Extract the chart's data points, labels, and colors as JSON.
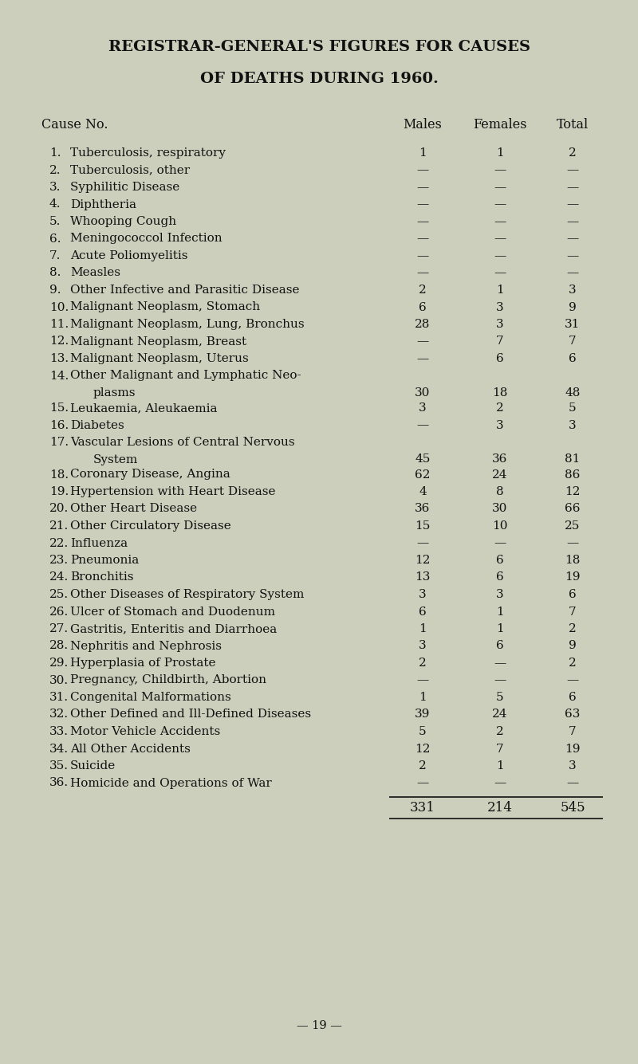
{
  "title_line1": "REGISTRAR-GENERAL'S FIGURES FOR CAUSES",
  "title_line2": "OF DEATHS DURING 1960.",
  "rows": [
    {
      "num": "1.",
      "cause": "Tuberculosis, respiratory",
      "cont": "",
      "males": "1",
      "females": "1",
      "total": "2"
    },
    {
      "num": "2.",
      "cause": "Tuberculosis, other",
      "cont": "",
      "males": "—",
      "females": "—",
      "total": "—"
    },
    {
      "num": "3.",
      "cause": "Syphilitic Disease",
      "cont": "",
      "males": "—",
      "females": "—",
      "total": "—"
    },
    {
      "num": "4.",
      "cause": "Diphtheria",
      "cont": "",
      "males": "—",
      "females": "—",
      "total": "—"
    },
    {
      "num": "5.",
      "cause": "Whooping Cough",
      "cont": "",
      "males": "—",
      "females": "—",
      "total": "—"
    },
    {
      "num": "6.",
      "cause": "Meningococcol Infection",
      "cont": "",
      "males": "—",
      "females": "—",
      "total": "—"
    },
    {
      "num": "7.",
      "cause": "Acute Poliomyelitis",
      "cont": "",
      "males": "—",
      "females": "—",
      "total": "—"
    },
    {
      "num": "8.",
      "cause": "Measles",
      "cont": "",
      "males": "—",
      "females": "—",
      "total": "—"
    },
    {
      "num": "9.",
      "cause": "Other Infective and Parasitic Disease",
      "cont": "",
      "males": "2",
      "females": "1",
      "total": "3"
    },
    {
      "num": "10.",
      "cause": "Malignant Neoplasm, Stomach",
      "cont": "",
      "males": "6",
      "females": "3",
      "total": "9"
    },
    {
      "num": "11.",
      "cause": "Malignant Neoplasm, Lung, Bronchus",
      "cont": "",
      "males": "28",
      "females": "3",
      "total": "31"
    },
    {
      "num": "12.",
      "cause": "Malignant Neoplasm, Breast",
      "cont": "",
      "males": "—",
      "females": "7",
      "total": "7"
    },
    {
      "num": "13.",
      "cause": "Malignant Neoplasm, Uterus",
      "cont": "",
      "males": "—",
      "females": "6",
      "total": "6"
    },
    {
      "num": "14.",
      "cause": "Other Malignant and Lymphatic Neo-",
      "cont": "plasms",
      "males": "30",
      "females": "18",
      "total": "48"
    },
    {
      "num": "15.",
      "cause": "Leukaemia, Aleukaemia",
      "cont": "",
      "males": "3",
      "females": "2",
      "total": "5"
    },
    {
      "num": "16.",
      "cause": "Diabetes",
      "cont": "",
      "males": "—",
      "females": "3",
      "total": "3"
    },
    {
      "num": "17.",
      "cause": "Vascular Lesions of Central Nervous",
      "cont": "System",
      "males": "45",
      "females": "36",
      "total": "81"
    },
    {
      "num": "18.",
      "cause": "Coronary Disease, Angina",
      "cont": "",
      "males": "62",
      "females": "24",
      "total": "86"
    },
    {
      "num": "19.",
      "cause": "Hypertension with Heart Disease",
      "cont": "",
      "males": "4",
      "females": "8",
      "total": "12"
    },
    {
      "num": "20.",
      "cause": "Other Heart Disease",
      "cont": "",
      "males": "36",
      "females": "30",
      "total": "66"
    },
    {
      "num": "21.",
      "cause": "Other Circulatory Disease",
      "cont": "",
      "males": "15",
      "females": "10",
      "total": "25"
    },
    {
      "num": "22.",
      "cause": "Influenza",
      "cont": "",
      "males": "—",
      "females": "—",
      "total": "—"
    },
    {
      "num": "23.",
      "cause": "Pneumonia",
      "cont": "",
      "males": "12",
      "females": "6",
      "total": "18"
    },
    {
      "num": "24.",
      "cause": "Bronchitis",
      "cont": "",
      "males": "13",
      "females": "6",
      "total": "19"
    },
    {
      "num": "25.",
      "cause": "Other Diseases of Respiratory System",
      "cont": "",
      "males": "3",
      "females": "3",
      "total": "6"
    },
    {
      "num": "26.",
      "cause": "Ulcer of Stomach and Duodenum",
      "cont": "",
      "males": "6",
      "females": "1",
      "total": "7"
    },
    {
      "num": "27.",
      "cause": "Gastritis, Enteritis and Diarrhoea",
      "cont": "",
      "males": "1",
      "females": "1",
      "total": "2"
    },
    {
      "num": "28.",
      "cause": "Nephritis and Nephrosis",
      "cont": "",
      "males": "3",
      "females": "6",
      "total": "9"
    },
    {
      "num": "29.",
      "cause": "Hyperplasia of Prostate",
      "cont": "",
      "males": "2",
      "females": "—",
      "total": "2"
    },
    {
      "num": "30.",
      "cause": "Pregnancy, Childbirth, Abortion",
      "cont": "",
      "males": "—",
      "females": "—",
      "total": "—"
    },
    {
      "num": "31.",
      "cause": "Congenital Malformations",
      "cont": "",
      "males": "1",
      "females": "5",
      "total": "6"
    },
    {
      "num": "32.",
      "cause": "Other Defined and Ill-Defined Diseases",
      "cont": "",
      "males": "39",
      "females": "24",
      "total": "63"
    },
    {
      "num": "33.",
      "cause": "Motor Vehicle Accidents",
      "cont": "",
      "males": "5",
      "females": "2",
      "total": "7"
    },
    {
      "num": "34.",
      "cause": "All Other Accidents",
      "cont": "",
      "males": "12",
      "females": "7",
      "total": "19"
    },
    {
      "num": "35.",
      "cause": "Suicide",
      "cont": "",
      "males": "2",
      "females": "1",
      "total": "3"
    },
    {
      "num": "36.",
      "cause": "Homicide and Operations of War",
      "cont": "",
      "males": "—",
      "females": "—",
      "total": "—"
    }
  ],
  "totals": {
    "males": "331",
    "females": "214",
    "total": "545"
  },
  "page_number": "— 19 —",
  "bg_color": "#cccfbc",
  "text_color": "#111111",
  "title_fontsize": 14,
  "header_fontsize": 11.5,
  "row_fontsize": 11
}
